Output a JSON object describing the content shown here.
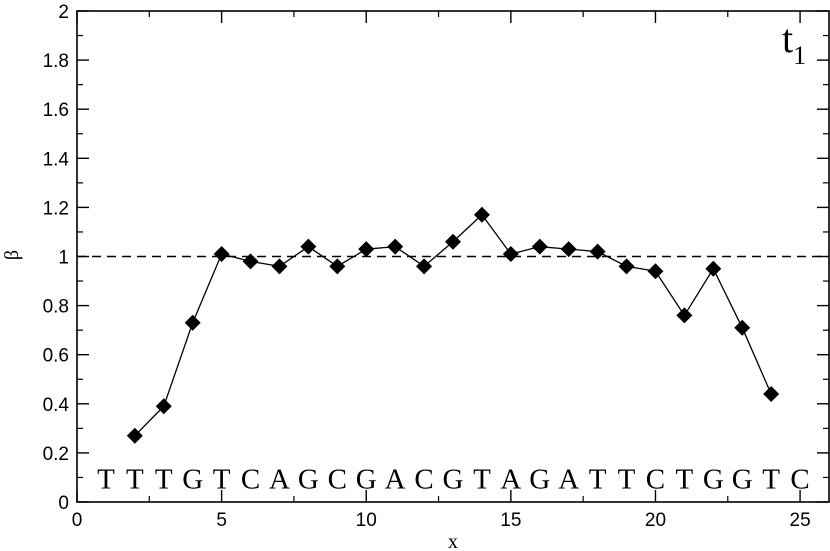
{
  "chart_data": {
    "type": "line",
    "xlabel": "x",
    "ylabel": "β",
    "xlim": [
      0,
      26
    ],
    "ylim": [
      0,
      2
    ],
    "x_ticks": [
      0,
      5,
      10,
      15,
      20,
      25
    ],
    "y_ticks": [
      0,
      0.2,
      0.4,
      0.6,
      0.8,
      1,
      1.2,
      1.4,
      1.6,
      1.8,
      2
    ],
    "x_tick_labels": [
      "0",
      "5",
      "10",
      "15",
      "20",
      "25"
    ],
    "y_tick_labels": [
      "0",
      "0.2",
      "0.4",
      "0.6",
      "0.8",
      "1",
      "1.2",
      "1.4",
      "1.6",
      "1.8",
      "2"
    ],
    "grid": false,
    "panel_label": {
      "main": "t",
      "subscript": "1"
    },
    "reference_line": {
      "y": 1,
      "style": "dashed"
    },
    "series": [
      {
        "marker": "diamond",
        "x": [
          2,
          3,
          4,
          5,
          6,
          7,
          8,
          9,
          10,
          11,
          12,
          13,
          14,
          15,
          16,
          17,
          18,
          19,
          20,
          21,
          22,
          23,
          24
        ],
        "y": [
          0.27,
          0.39,
          0.73,
          1.01,
          0.98,
          0.96,
          1.04,
          0.96,
          1.03,
          1.04,
          0.96,
          1.06,
          1.17,
          1.01,
          1.04,
          1.03,
          1.02,
          0.96,
          0.94,
          0.76,
          0.95,
          0.71,
          0.44
        ]
      }
    ],
    "sequence": {
      "y": 0.1,
      "x": [
        1,
        2,
        3,
        4,
        5,
        6,
        7,
        8,
        9,
        10,
        11,
        12,
        13,
        14,
        15,
        16,
        17,
        18,
        19,
        20,
        21,
        22,
        23,
        24,
        25
      ],
      "letters": [
        "T",
        "T",
        "T",
        "G",
        "T",
        "C",
        "A",
        "G",
        "C",
        "G",
        "A",
        "C",
        "G",
        "T",
        "A",
        "G",
        "A",
        "T",
        "T",
        "C",
        "T",
        "G",
        "G",
        "T",
        "C"
      ]
    }
  }
}
